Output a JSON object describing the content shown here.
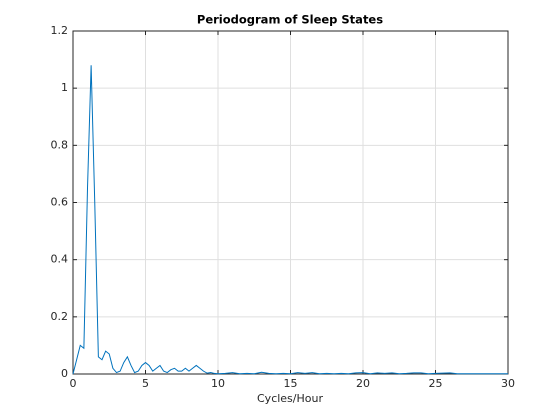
{
  "chart_data": {
    "type": "line",
    "title": "Periodogram of Sleep States",
    "x_label": "Cycles/Hour",
    "x": [
      0,
      0.25,
      0.5,
      0.75,
      1,
      1.25,
      1.5,
      1.75,
      2,
      2.25,
      2.5,
      2.75,
      3,
      3.25,
      3.5,
      3.75,
      4,
      4.25,
      4.5,
      4.75,
      5,
      5.25,
      5.5,
      5.75,
      6,
      6.25,
      6.5,
      6.75,
      7,
      7.25,
      7.5,
      7.75,
      8,
      8.25,
      8.5,
      8.75,
      9,
      9.25,
      9.5,
      9.75,
      10,
      10.5,
      11,
      11.5,
      12,
      12.5,
      13,
      13.5,
      14,
      14.5,
      15,
      15.5,
      16,
      16.5,
      17,
      17.5,
      18,
      18.5,
      19,
      19.5,
      20,
      20.5,
      21,
      21.5,
      22,
      22.5,
      23,
      23.5,
      24,
      24.5,
      25,
      25.5,
      26,
      26.5,
      27,
      27.5,
      28,
      28.5,
      29,
      29.5,
      30
    ],
    "series": [
      {
        "name": "Periodogram",
        "color": "#0072bd",
        "values": [
          0,
          0.05,
          0.1,
          0.09,
          0.65,
          1.08,
          0.6,
          0.06,
          0.05,
          0.08,
          0.07,
          0.02,
          0.005,
          0.01,
          0.04,
          0.06,
          0.03,
          0.005,
          0.01,
          0.03,
          0.04,
          0.03,
          0.01,
          0.02,
          0.03,
          0.01,
          0.005,
          0.015,
          0.02,
          0.01,
          0.01,
          0.02,
          0.01,
          0.02,
          0.03,
          0.02,
          0.01,
          0.003,
          0.005,
          0.002,
          0.001,
          0.002,
          0.005,
          0.001,
          0.002,
          0.001,
          0.006,
          0.002,
          0.001,
          0.002,
          0.001,
          0.005,
          0.002,
          0.005,
          0.001,
          0.002,
          0.001,
          0.002,
          0.001,
          0.004,
          0.005,
          0.001,
          0.004,
          0.002,
          0.004,
          0.001,
          0.002,
          0.004,
          0.004,
          0.001,
          0.002,
          0.003,
          0.004,
          0.001,
          0.001,
          0.001,
          0.001,
          0.001,
          0.001,
          0.001,
          0.001
        ]
      }
    ],
    "xlim": [
      0,
      30
    ],
    "xticks": [
      0,
      5,
      10,
      15,
      20,
      25,
      30
    ],
    "ylim": [
      0,
      1.2
    ],
    "yticks": [
      0,
      0.2,
      0.4,
      0.6,
      0.8,
      1,
      1.2
    ],
    "grid": true
  }
}
